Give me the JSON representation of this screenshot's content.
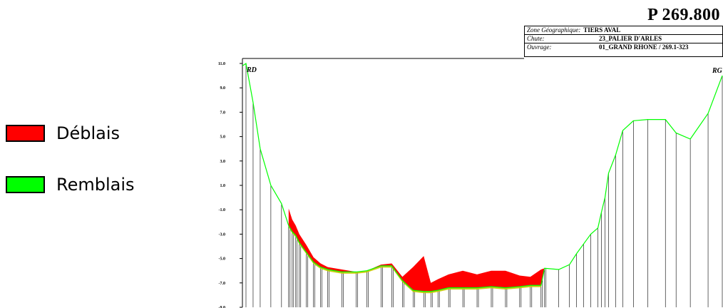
{
  "title": "P 269.800",
  "info": {
    "zone_label": "Zone Géographique:",
    "zone_value": "TIERS AVAL",
    "chute_label": "Chute:",
    "chute_value": "23_PALIER D'ARLES",
    "ouvrage_label": "Ouvrage:",
    "ouvrage_value": "01_GRAND RHONE / 269.1-323"
  },
  "legend": {
    "deblais": {
      "label": "Déblais",
      "color": "#ff0000"
    },
    "remblais": {
      "label": "Remblais",
      "color": "#00ff00"
    }
  },
  "chart_data": {
    "type": "area",
    "title": "P 269.800",
    "xlabel": "",
    "ylabel": "",
    "ylim": [
      -9.0,
      11.0
    ],
    "yticks": [
      "11.0",
      "9.0",
      "7.0",
      "5.0",
      "3.0",
      "1.0",
      "-1.0",
      "-3.0",
      "-5.0",
      "-7.0",
      "-9.0"
    ],
    "bank_left": "RD",
    "bank_right": "RG",
    "xlim": [
      0,
      675
    ],
    "series": [
      {
        "name": "Déblais",
        "color": "#ff0000",
        "x": [
          65,
          70,
          75,
          80,
          90,
          100,
          110,
          120,
          140,
          160,
          175,
          195,
          210,
          225,
          240,
          255,
          265,
          275,
          290,
          310,
          330,
          350,
          370,
          390,
          405,
          420,
          425
        ],
        "y": [
          -0.9,
          -1.8,
          -2.3,
          -3.0,
          -3.9,
          -4.9,
          -5.4,
          -5.7,
          -5.9,
          -6.1,
          -6.0,
          -5.5,
          -5.4,
          -6.5,
          -5.7,
          -4.8,
          -7.0,
          -6.7,
          -6.3,
          -6.0,
          -6.3,
          -6.0,
          -6.0,
          -6.4,
          -6.5,
          -5.9,
          -5.8
        ]
      },
      {
        "name": "Remblais",
        "color": "#00ff00",
        "x": [
          0,
          5,
          15,
          25,
          40,
          55,
          65,
          70,
          75,
          80,
          90,
          100,
          110,
          120,
          140,
          160,
          175,
          195,
          210,
          225,
          240,
          255,
          265,
          275,
          290,
          310,
          330,
          350,
          370,
          390,
          405,
          420,
          425,
          445,
          460,
          470,
          480,
          490,
          500,
          505,
          510,
          515,
          525,
          535,
          550,
          570,
          595,
          610,
          630,
          655,
          675
        ],
        "y": [
          10.8,
          11.0,
          7.8,
          4.0,
          1.0,
          -0.5,
          -2.3,
          -2.8,
          -3.1,
          -3.7,
          -4.5,
          -5.3,
          -5.7,
          -5.9,
          -6.1,
          -6.1,
          -6.0,
          -5.6,
          -5.6,
          -6.8,
          -7.6,
          -7.7,
          -7.7,
          -7.6,
          -7.4,
          -7.4,
          -7.4,
          -7.3,
          -7.4,
          -7.3,
          -7.2,
          -7.2,
          -5.8,
          -5.9,
          -5.5,
          -4.6,
          -3.8,
          -3.0,
          -2.5,
          -1.2,
          0.0,
          2.0,
          3.5,
          5.5,
          6.3,
          6.4,
          6.4,
          5.3,
          4.8,
          6.9,
          10.0
        ]
      }
    ]
  }
}
